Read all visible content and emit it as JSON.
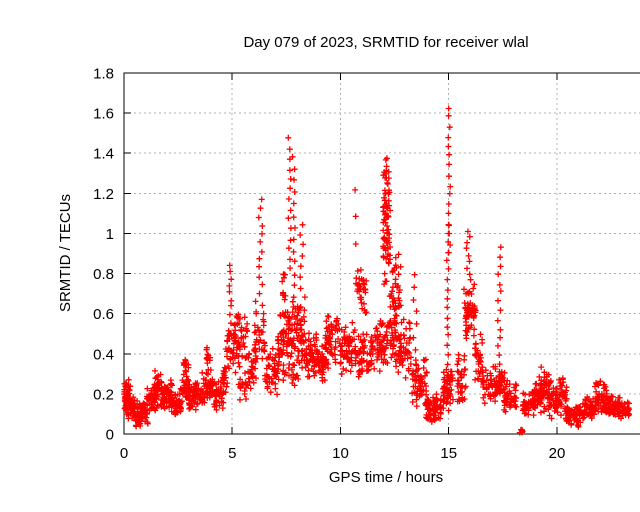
{
  "chart_data": {
    "type": "scatter",
    "title": "Day 079 of 2023, SRMTID for receiver wlal",
    "xlabel": "GPS time / hours",
    "ylabel": "SRMTID / TECUs",
    "xlim": [
      0,
      24.25
    ],
    "ylim": [
      0,
      1.8
    ],
    "xticks": [
      [
        0,
        "0"
      ],
      [
        5,
        "5"
      ],
      [
        10,
        "10"
      ],
      [
        15,
        "15"
      ],
      [
        20,
        "20"
      ]
    ],
    "yticks": [
      [
        0,
        "0"
      ],
      [
        0.2,
        "0.2"
      ],
      [
        0.4,
        "0.4"
      ],
      [
        0.6,
        "0.6"
      ],
      [
        0.8,
        "0.8"
      ],
      [
        1,
        "1"
      ],
      [
        1.2,
        "1.2"
      ],
      [
        1.4,
        "1.4"
      ],
      [
        1.6,
        "1.6"
      ],
      [
        1.8,
        "1.8"
      ]
    ],
    "grid": true,
    "legend": "none",
    "marker": {
      "shape": "plus",
      "color": "#ff0000",
      "size": 6,
      "stroke_width": 1.3
    },
    "grid_color": "#b0b0b0",
    "border_color": "#000000",
    "background": "#ffffff",
    "peaks": [
      {
        "x": 4.9,
        "ymax": 0.84
      },
      {
        "x": 6.3,
        "ymax": 1.17
      },
      {
        "x": 7.7,
        "ymax": 1.47
      },
      {
        "x": 8.2,
        "ymax": 1.05
      },
      {
        "x": 10.7,
        "ymax": 1.21
      },
      {
        "x": 12.2,
        "ymax": 1.38
      },
      {
        "x": 15.0,
        "ymax": 1.63
      },
      {
        "x": 15.9,
        "ymax": 1.01
      },
      {
        "x": 17.4,
        "ymax": 0.93
      }
    ],
    "seed": 123456789,
    "note": "Dense scatter (~2500 pts) approximated by cluster envelopes [x0,x1,y0,y1,count,type]; type band = scattered blob, col = vertical ladder of points.",
    "clusters": [
      [
        0.0,
        0.3,
        0.1,
        0.28,
        40,
        "band"
      ],
      [
        0.05,
        0.55,
        0.05,
        0.22,
        45,
        "band"
      ],
      [
        0.5,
        1.1,
        0.03,
        0.18,
        65,
        "band"
      ],
      [
        1.05,
        1.45,
        0.08,
        0.25,
        45,
        "band"
      ],
      [
        1.4,
        1.75,
        0.12,
        0.32,
        45,
        "band"
      ],
      [
        1.7,
        2.25,
        0.08,
        0.28,
        60,
        "band"
      ],
      [
        2.2,
        2.65,
        0.09,
        0.21,
        45,
        "band"
      ],
      [
        2.6,
        3.05,
        0.13,
        0.3,
        40,
        "band"
      ],
      [
        2.75,
        3.0,
        0.28,
        0.43,
        14,
        "band"
      ],
      [
        3.0,
        3.65,
        0.1,
        0.28,
        55,
        "band"
      ],
      [
        3.6,
        4.1,
        0.14,
        0.34,
        40,
        "band"
      ],
      [
        3.75,
        4.0,
        0.32,
        0.45,
        10,
        "band"
      ],
      [
        4.05,
        4.6,
        0.1,
        0.3,
        45,
        "band"
      ],
      [
        4.55,
        4.8,
        0.15,
        0.35,
        18,
        "band"
      ],
      [
        4.7,
        5.15,
        0.28,
        0.6,
        35,
        "band"
      ],
      [
        4.82,
        4.98,
        0.6,
        0.84,
        8,
        "col"
      ],
      [
        5.1,
        5.75,
        0.33,
        0.62,
        42,
        "band"
      ],
      [
        5.25,
        5.65,
        0.16,
        0.32,
        16,
        "band"
      ],
      [
        5.7,
        6.1,
        0.22,
        0.42,
        25,
        "band"
      ],
      [
        6.0,
        6.55,
        0.25,
        0.68,
        40,
        "band"
      ],
      [
        6.22,
        6.42,
        0.7,
        1.17,
        12,
        "col"
      ],
      [
        6.5,
        7.15,
        0.17,
        0.45,
        50,
        "band"
      ],
      [
        7.1,
        7.5,
        0.25,
        0.65,
        40,
        "band"
      ],
      [
        7.3,
        7.5,
        0.6,
        0.82,
        12,
        "band"
      ],
      [
        7.58,
        7.72,
        0.82,
        1.47,
        14,
        "col"
      ],
      [
        7.74,
        7.9,
        0.68,
        1.38,
        13,
        "col"
      ],
      [
        7.5,
        7.95,
        0.2,
        0.68,
        55,
        "band"
      ],
      [
        7.95,
        8.4,
        0.25,
        0.72,
        50,
        "band"
      ],
      [
        8.12,
        8.28,
        0.72,
        1.05,
        7,
        "col"
      ],
      [
        8.35,
        9.0,
        0.27,
        0.52,
        65,
        "band"
      ],
      [
        8.95,
        9.35,
        0.25,
        0.45,
        35,
        "band"
      ],
      [
        9.3,
        9.95,
        0.3,
        0.6,
        60,
        "band"
      ],
      [
        9.95,
        10.55,
        0.28,
        0.58,
        55,
        "band"
      ],
      [
        10.62,
        10.78,
        0.95,
        1.21,
        3,
        "col"
      ],
      [
        10.68,
        11.2,
        0.55,
        0.88,
        32,
        "band"
      ],
      [
        10.55,
        11.45,
        0.25,
        0.55,
        60,
        "band"
      ],
      [
        11.4,
        11.95,
        0.28,
        0.58,
        42,
        "band"
      ],
      [
        11.95,
        12.3,
        0.62,
        1.38,
        55,
        "band"
      ],
      [
        11.98,
        12.28,
        1.0,
        1.32,
        20,
        "band"
      ],
      [
        12.05,
        12.2,
        1.28,
        1.38,
        6,
        "col"
      ],
      [
        11.9,
        12.55,
        0.3,
        0.62,
        50,
        "band"
      ],
      [
        12.3,
        12.8,
        0.45,
        0.9,
        45,
        "band"
      ],
      [
        12.55,
        13.25,
        0.25,
        0.58,
        50,
        "band"
      ],
      [
        13.35,
        13.52,
        0.42,
        0.8,
        7,
        "col"
      ],
      [
        13.25,
        14.0,
        0.13,
        0.4,
        55,
        "band"
      ],
      [
        13.95,
        14.65,
        0.04,
        0.22,
        70,
        "band"
      ],
      [
        14.7,
        15.2,
        0.1,
        0.35,
        50,
        "band"
      ],
      [
        14.9,
        15.0,
        0.35,
        1.05,
        16,
        "col"
      ],
      [
        14.98,
        15.08,
        0.9,
        1.63,
        16,
        "col"
      ],
      [
        15.4,
        15.8,
        0.1,
        0.45,
        35,
        "band"
      ],
      [
        15.7,
        16.25,
        0.45,
        0.8,
        55,
        "band"
      ],
      [
        15.82,
        15.98,
        0.8,
        1.01,
        8,
        "col"
      ],
      [
        16.2,
        16.6,
        0.2,
        0.52,
        35,
        "band"
      ],
      [
        16.55,
        17.2,
        0.14,
        0.36,
        48,
        "band"
      ],
      [
        17.25,
        17.42,
        0.3,
        0.93,
        15,
        "col"
      ],
      [
        17.25,
        17.6,
        0.17,
        0.33,
        32,
        "band"
      ],
      [
        17.55,
        18.15,
        0.09,
        0.28,
        45,
        "band"
      ],
      [
        18.28,
        18.42,
        0.004,
        0.025,
        6,
        "band"
      ],
      [
        18.4,
        19.0,
        0.07,
        0.22,
        48,
        "band"
      ],
      [
        18.95,
        19.3,
        0.1,
        0.3,
        35,
        "band"
      ],
      [
        19.25,
        19.6,
        0.1,
        0.35,
        30,
        "band"
      ],
      [
        19.55,
        20.0,
        0.07,
        0.3,
        40,
        "band"
      ],
      [
        19.95,
        20.45,
        0.08,
        0.3,
        40,
        "band"
      ],
      [
        20.4,
        21.3,
        0.03,
        0.16,
        75,
        "band"
      ],
      [
        21.25,
        21.8,
        0.06,
        0.2,
        50,
        "band"
      ],
      [
        21.75,
        22.35,
        0.1,
        0.27,
        55,
        "band"
      ],
      [
        22.3,
        22.9,
        0.07,
        0.2,
        50,
        "band"
      ],
      [
        22.85,
        23.35,
        0.07,
        0.16,
        40,
        "band"
      ]
    ]
  }
}
